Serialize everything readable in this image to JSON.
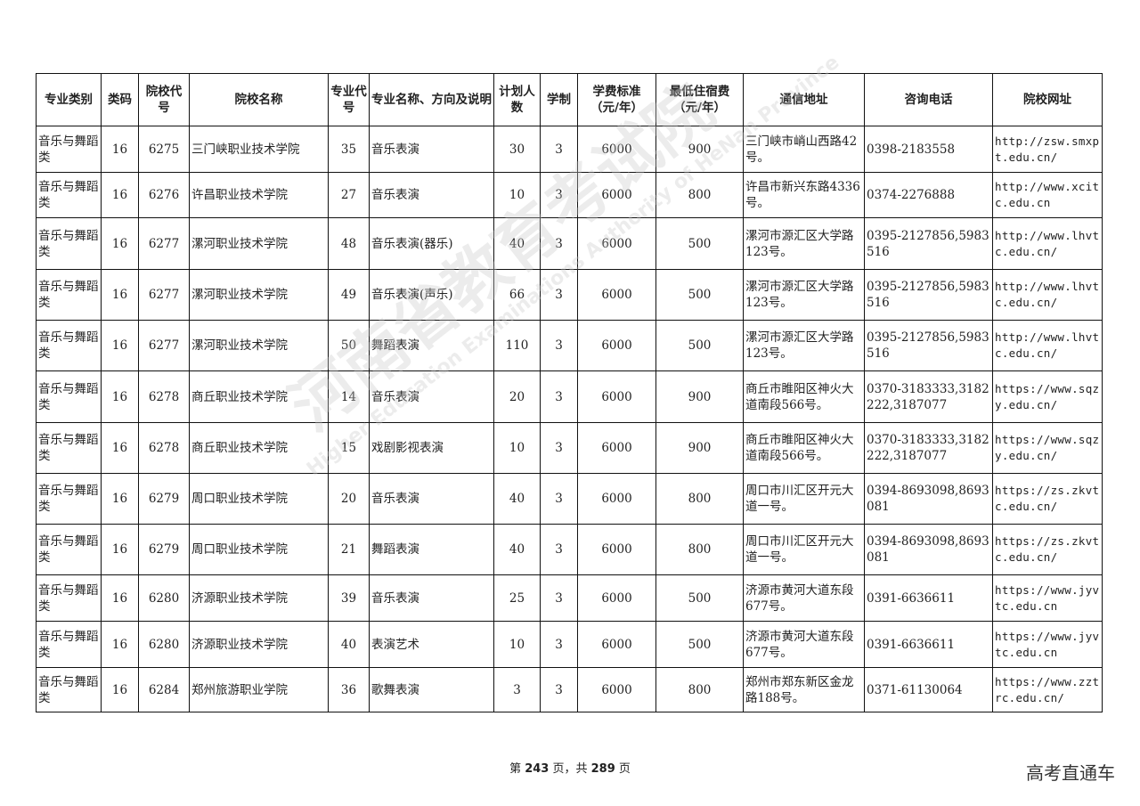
{
  "table": {
    "headers": [
      "专业类别",
      "类码",
      "院校代号",
      "院校名称",
      "专业代号",
      "专业名称、方向及说明",
      "计划人数",
      "学制",
      "学费标准（元/年）",
      "最低住宿费（元/年）",
      "通信地址",
      "咨询电话",
      "院校网址"
    ],
    "rows": [
      [
        "音乐与舞蹈类",
        "16",
        "6275",
        "三门峡职业技术学院",
        "35",
        "音乐表演",
        "30",
        "3",
        "6000",
        "900",
        "三门峡市峭山西路42号。",
        "0398-2183558",
        "http://zsw.smxpt.edu.cn/"
      ],
      [
        "音乐与舞蹈类",
        "16",
        "6276",
        "许昌职业技术学院",
        "27",
        "音乐表演",
        "10",
        "3",
        "6000",
        "800",
        "许昌市新兴东路4336号。",
        "0374-2276888",
        "http://www.xcitc.edu.cn"
      ],
      [
        "音乐与舞蹈类",
        "16",
        "6277",
        "漯河职业技术学院",
        "48",
        "音乐表演(器乐)",
        "40",
        "3",
        "6000",
        "500",
        "漯河市源汇区大学路123号。",
        "0395-2127856,5983516",
        "http://www.lhvtc.edu.cn/"
      ],
      [
        "音乐与舞蹈类",
        "16",
        "6277",
        "漯河职业技术学院",
        "49",
        "音乐表演(声乐)",
        "66",
        "3",
        "6000",
        "500",
        "漯河市源汇区大学路123号。",
        "0395-2127856,5983516",
        "http://www.lhvtc.edu.cn/"
      ],
      [
        "音乐与舞蹈类",
        "16",
        "6277",
        "漯河职业技术学院",
        "50",
        "舞蹈表演",
        "110",
        "3",
        "6000",
        "500",
        "漯河市源汇区大学路123号。",
        "0395-2127856,5983516",
        "http://www.lhvtc.edu.cn/"
      ],
      [
        "音乐与舞蹈类",
        "16",
        "6278",
        "商丘职业技术学院",
        "14",
        "音乐表演",
        "20",
        "3",
        "6000",
        "900",
        "商丘市睢阳区神火大道南段566号。",
        "0370-3183333,3182222,3187077",
        "https://www.sqzy.edu.cn/"
      ],
      [
        "音乐与舞蹈类",
        "16",
        "6278",
        "商丘职业技术学院",
        "15",
        "戏剧影视表演",
        "10",
        "3",
        "6000",
        "900",
        "商丘市睢阳区神火大道南段566号。",
        "0370-3183333,3182222,3187077",
        "https://www.sqzy.edu.cn/"
      ],
      [
        "音乐与舞蹈类",
        "16",
        "6279",
        "周口职业技术学院",
        "20",
        "音乐表演",
        "40",
        "3",
        "6000",
        "800",
        "周口市川汇区开元大道一号。",
        "0394-8693098,8693081",
        "https://zs.zkvtc.edu.cn/"
      ],
      [
        "音乐与舞蹈类",
        "16",
        "6279",
        "周口职业技术学院",
        "21",
        "舞蹈表演",
        "40",
        "3",
        "6000",
        "800",
        "周口市川汇区开元大道一号。",
        "0394-8693098,8693081",
        "https://zs.zkvtc.edu.cn/"
      ],
      [
        "音乐与舞蹈类",
        "16",
        "6280",
        "济源职业技术学院",
        "39",
        "音乐表演",
        "25",
        "3",
        "6000",
        "500",
        "济源市黄河大道东段677号。",
        "0391-6636611",
        "https://www.jyvtc.edu.cn"
      ],
      [
        "音乐与舞蹈类",
        "16",
        "6280",
        "济源职业技术学院",
        "40",
        "表演艺术",
        "10",
        "3",
        "6000",
        "500",
        "济源市黄河大道东段677号。",
        "0391-6636611",
        "https://www.jyvtc.edu.cn"
      ],
      [
        "音乐与舞蹈类",
        "16",
        "6284",
        "郑州旅游职业学院",
        "36",
        "歌舞表演",
        "3",
        "3",
        "6000",
        "800",
        "郑州市郑东新区金龙路188号。",
        "0371-61130064",
        "https://www.zztrc.edu.cn/"
      ]
    ]
  },
  "watermark": {
    "text_cn": "河南省教育考试院",
    "text_en": "Higher Education Examinations Authority of HeNan Province"
  },
  "footer": {
    "prefix": "第 ",
    "page": "243",
    "middle": " 页，共 ",
    "total": "289",
    "suffix": " 页"
  },
  "brand": "高考直通车"
}
